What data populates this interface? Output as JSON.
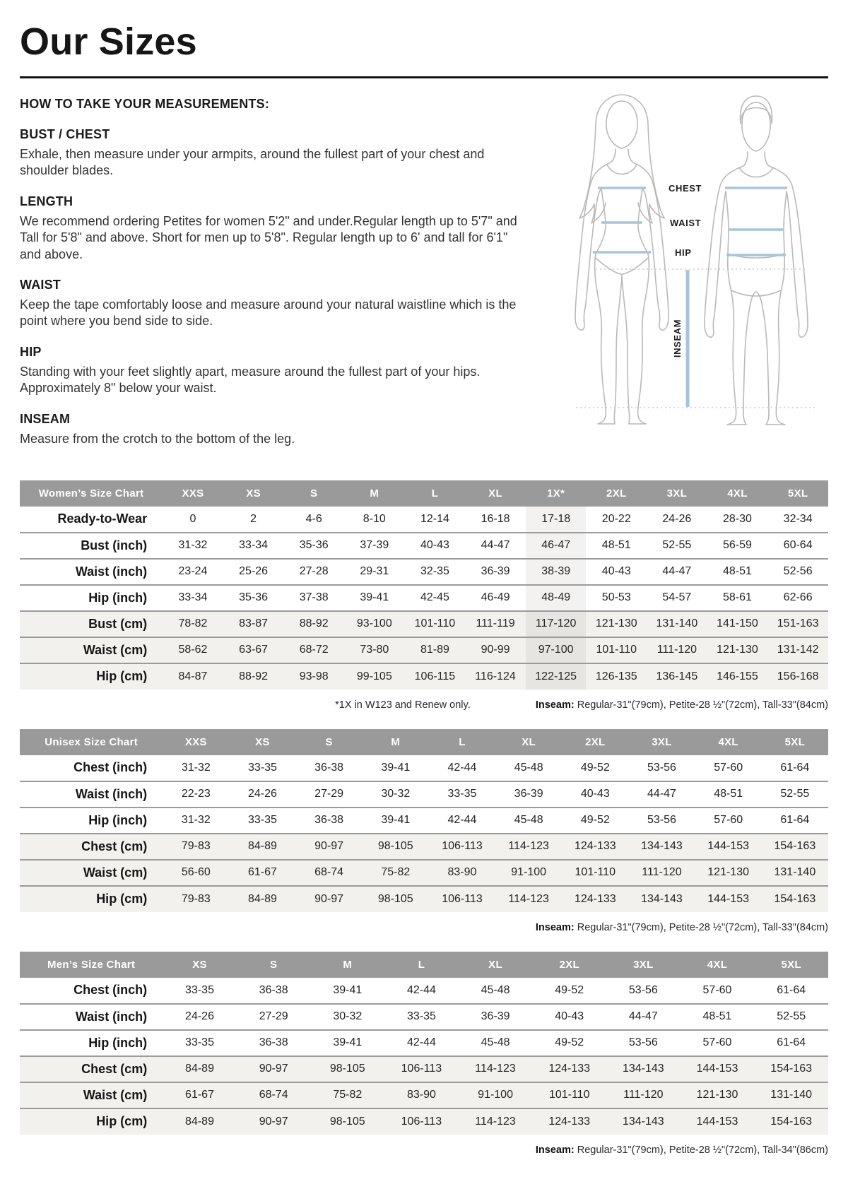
{
  "page": {
    "title": "Our Sizes"
  },
  "colors": {
    "accent_measure_line": "#a6c5d9",
    "table_header_gray": "#9a9a9a",
    "shaded_row_gray": "#f2f1ee",
    "highlight_column_gray": "#efeeec"
  },
  "instructions": {
    "heading": "HOW TO TAKE YOUR MEASUREMENTS:",
    "sections": [
      {
        "title": "BUST / CHEST",
        "body": "Exhale, then measure under your armpits, around the fullest part of your chest and shoulder blades."
      },
      {
        "title": "LENGTH",
        "body": "We recommend ordering Petites for women 5'2\" and under.Regular length up to 5'7\" and Tall for 5'8\" and above. Short for men up to 5'8\". Regular length up to 6' and tall for 6'1\" and above."
      },
      {
        "title": "WAIST",
        "body": "Keep the tape comfortably loose and measure around your natural waistline which is the point where you bend side to side."
      },
      {
        "title": "HIP",
        "body": "Standing with your feet slightly apart, measure around the fullest part of your hips. Approximately 8\" below your waist."
      },
      {
        "title": "INSEAM",
        "body": "Measure from the crotch to the bottom of the leg."
      }
    ]
  },
  "diagram": {
    "chest_label": "CHEST",
    "waist_label": "WAIST",
    "hip_label": "HIP",
    "inseam_label": "INSEAM"
  },
  "tables": {
    "womens": {
      "title": "Women’s Size Chart",
      "columns": [
        "XXS",
        "XS",
        "S",
        "M",
        "L",
        "XL",
        "1X*",
        "2XL",
        "3XL",
        "4XL",
        "5XL"
      ],
      "highlight_col": 6,
      "rows": [
        {
          "label": "Ready-to-Wear",
          "shaded": false,
          "values": [
            "0",
            "2",
            "4-6",
            "8-10",
            "12-14",
            "16-18",
            "17-18",
            "20-22",
            "24-26",
            "28-30",
            "32-34"
          ]
        },
        {
          "label": "Bust (inch)",
          "shaded": false,
          "values": [
            "31-32",
            "33-34",
            "35-36",
            "37-39",
            "40-43",
            "44-47",
            "46-47",
            "48-51",
            "52-55",
            "56-59",
            "60-64"
          ]
        },
        {
          "label": "Waist (inch)",
          "shaded": false,
          "values": [
            "23-24",
            "25-26",
            "27-28",
            "29-31",
            "32-35",
            "36-39",
            "38-39",
            "40-43",
            "44-47",
            "48-51",
            "52-56"
          ]
        },
        {
          "label": "Hip (inch)",
          "shaded": false,
          "values": [
            "33-34",
            "35-36",
            "37-38",
            "39-41",
            "42-45",
            "46-49",
            "48-49",
            "50-53",
            "54-57",
            "58-61",
            "62-66"
          ]
        },
        {
          "label": "Bust (cm)",
          "shaded": true,
          "values": [
            "78-82",
            "83-87",
            "88-92",
            "93-100",
            "101-110",
            "111-119",
            "117-120",
            "121-130",
            "131-140",
            "141-150",
            "151-163"
          ]
        },
        {
          "label": "Waist (cm)",
          "shaded": true,
          "values": [
            "58-62",
            "63-67",
            "68-72",
            "73-80",
            "81-89",
            "90-99",
            "97-100",
            "101-110",
            "111-120",
            "121-130",
            "131-142"
          ]
        },
        {
          "label": "Hip (cm)",
          "shaded": true,
          "values": [
            "84-87",
            "88-92",
            "93-98",
            "99-105",
            "106-115",
            "116-124",
            "122-125",
            "126-135",
            "136-145",
            "146-155",
            "156-168"
          ]
        }
      ],
      "footnote_left": "*1X in W123 and Renew only.",
      "inseam_label": "Inseam:",
      "inseam_text": " Regular-31\"(79cm), Petite-28 ½\"(72cm), Tall-33\"(84cm)"
    },
    "unisex": {
      "title": "Unisex Size Chart",
      "columns": [
        "XXS",
        "XS",
        "S",
        "M",
        "L",
        "XL",
        "2XL",
        "3XL",
        "4XL",
        "5XL"
      ],
      "highlight_col": -1,
      "rows": [
        {
          "label": "Chest (inch)",
          "shaded": false,
          "values": [
            "31-32",
            "33-35",
            "36-38",
            "39-41",
            "42-44",
            "45-48",
            "49-52",
            "53-56",
            "57-60",
            "61-64"
          ]
        },
        {
          "label": "Waist (inch)",
          "shaded": false,
          "values": [
            "22-23",
            "24-26",
            "27-29",
            "30-32",
            "33-35",
            "36-39",
            "40-43",
            "44-47",
            "48-51",
            "52-55"
          ]
        },
        {
          "label": "Hip (inch)",
          "shaded": false,
          "values": [
            "31-32",
            "33-35",
            "36-38",
            "39-41",
            "42-44",
            "45-48",
            "49-52",
            "53-56",
            "57-60",
            "61-64"
          ]
        },
        {
          "label": "Chest (cm)",
          "shaded": true,
          "values": [
            "79-83",
            "84-89",
            "90-97",
            "98-105",
            "106-113",
            "114-123",
            "124-133",
            "134-143",
            "144-153",
            "154-163"
          ]
        },
        {
          "label": "Waist (cm)",
          "shaded": true,
          "values": [
            "56-60",
            "61-67",
            "68-74",
            "75-82",
            "83-90",
            "91-100",
            "101-110",
            "111-120",
            "121-130",
            "131-140"
          ]
        },
        {
          "label": "Hip (cm)",
          "shaded": true,
          "values": [
            "79-83",
            "84-89",
            "90-97",
            "98-105",
            "106-113",
            "114-123",
            "124-133",
            "134-143",
            "144-153",
            "154-163"
          ]
        }
      ],
      "footnote_left": "",
      "inseam_label": "Inseam:",
      "inseam_text": " Regular-31\"(79cm), Petite-28 ½\"(72cm), Tall-33\"(84cm)"
    },
    "mens": {
      "title": "Men’s Size Chart",
      "columns": [
        "XS",
        "S",
        "M",
        "L",
        "XL",
        "2XL",
        "3XL",
        "4XL",
        "5XL"
      ],
      "highlight_col": -1,
      "rows": [
        {
          "label": "Chest (inch)",
          "shaded": false,
          "values": [
            "33-35",
            "36-38",
            "39-41",
            "42-44",
            "45-48",
            "49-52",
            "53-56",
            "57-60",
            "61-64"
          ]
        },
        {
          "label": "Waist (inch)",
          "shaded": false,
          "values": [
            "24-26",
            "27-29",
            "30-32",
            "33-35",
            "36-39",
            "40-43",
            "44-47",
            "48-51",
            "52-55"
          ]
        },
        {
          "label": "Hip (inch)",
          "shaded": false,
          "values": [
            "33-35",
            "36-38",
            "39-41",
            "42-44",
            "45-48",
            "49-52",
            "53-56",
            "57-60",
            "61-64"
          ]
        },
        {
          "label": "Chest (cm)",
          "shaded": true,
          "values": [
            "84-89",
            "90-97",
            "98-105",
            "106-113",
            "114-123",
            "124-133",
            "134-143",
            "144-153",
            "154-163"
          ]
        },
        {
          "label": "Waist (cm)",
          "shaded": true,
          "values": [
            "61-67",
            "68-74",
            "75-82",
            "83-90",
            "91-100",
            "101-110",
            "111-120",
            "121-130",
            "131-140"
          ]
        },
        {
          "label": "Hip (cm)",
          "shaded": true,
          "values": [
            "84-89",
            "90-97",
            "98-105",
            "106-113",
            "114-123",
            "124-133",
            "134-143",
            "144-153",
            "154-163"
          ]
        }
      ],
      "footnote_left": "",
      "inseam_label": "Inseam:",
      "inseam_text": " Regular-31\"(79cm), Petite-28 ½\"(72cm), Tall-34\"(86cm)"
    }
  }
}
